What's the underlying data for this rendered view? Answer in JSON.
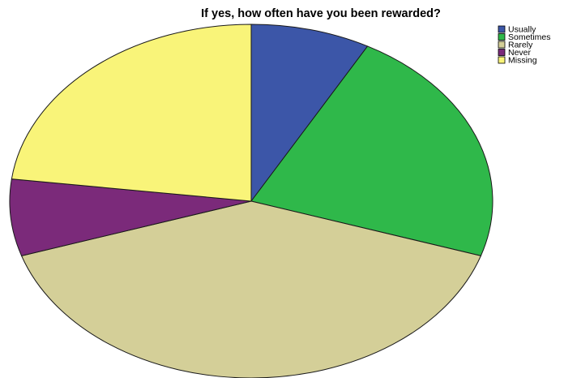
{
  "chart_data": {
    "type": "pie",
    "title": "If yes, how often have you been rewarded?",
    "categories": [
      "Usually",
      "Sometimes",
      "Rarely",
      "Never",
      "Missing"
    ],
    "values": [
      8,
      22,
      40,
      7,
      23
    ],
    "unit": "percent",
    "colors": [
      "#3c56a8",
      "#2fb84a",
      "#d4cf98",
      "#7b2a7a",
      "#f9f479"
    ],
    "legend_position": "top-right",
    "start_angle_deg": 0,
    "direction": "clockwise",
    "style": "3d-tilted"
  }
}
